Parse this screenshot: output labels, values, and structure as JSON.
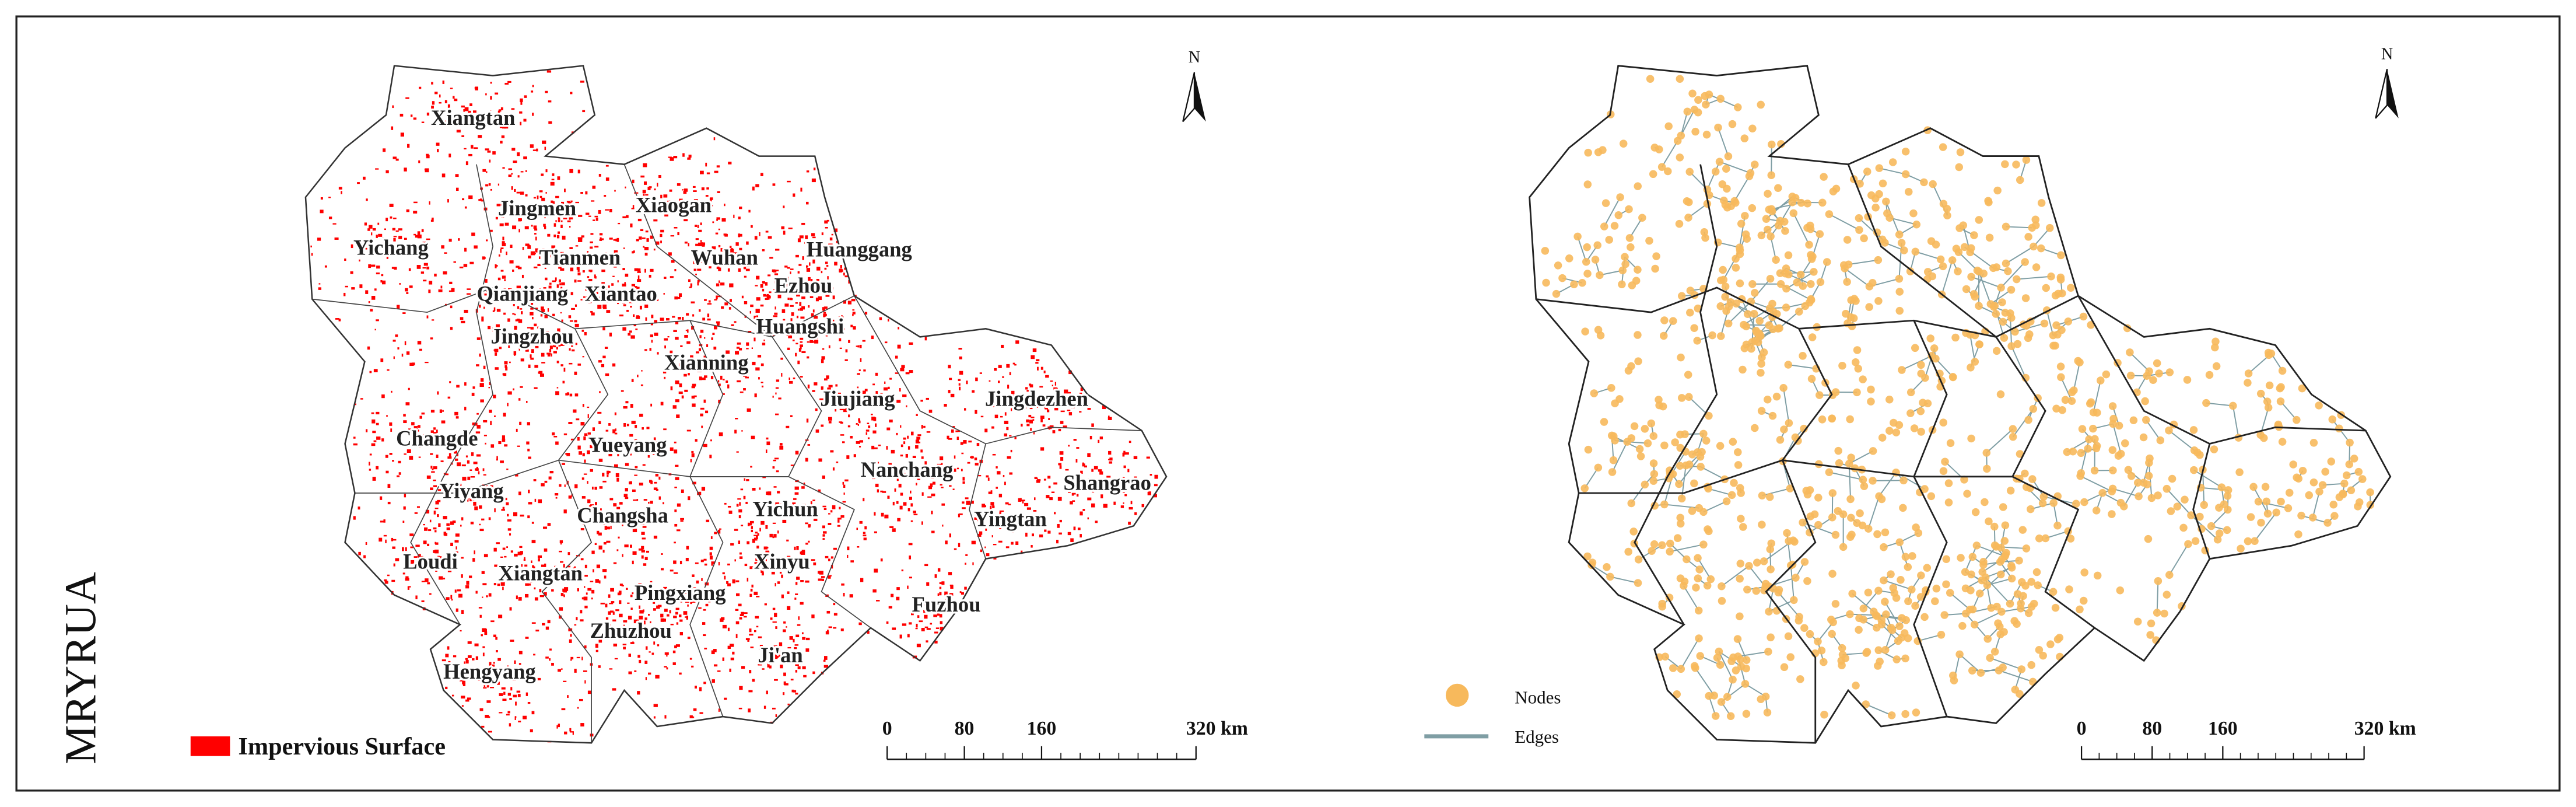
{
  "side_label": "MRYRUA",
  "left_map": {
    "north": "N",
    "cities": [
      "Xiangtan",
      "Jingmen",
      "Xiaogan",
      "Yichang",
      "Tianmen",
      "Wuhan",
      "Huanggang",
      "Qianjiang",
      "Xiantao",
      "Ezhou",
      "Jingzhou",
      "Huangshi",
      "Xianning",
      "Jiujiang",
      "Jingdezhen",
      "Changde",
      "Yueyang",
      "Nanchang",
      "Shangrao",
      "Yiyang",
      "Changsha",
      "Yichun",
      "Yingtan",
      "Loudi",
      "Xiangtan",
      "Xinyu",
      "Pingxiang",
      "Fuzhou",
      "Zhuzhou",
      "Ji'an",
      "Hengyang"
    ],
    "legend": {
      "label": "Impervious Surface",
      "color": "#ff0000"
    },
    "scale_bar": {
      "range": [
        0,
        320
      ],
      "ticks": [
        0,
        80,
        160,
        {
          "value": 320,
          "label": "320 km"
        }
      ]
    }
  },
  "right_map": {
    "north": "N",
    "legend": {
      "nodes": {
        "label": "Nodes",
        "color": "#f7b95c"
      },
      "edges": {
        "label": "Edges",
        "color": "#7f9ea4"
      }
    },
    "scale_bar": {
      "range": [
        0,
        320
      ],
      "ticks": [
        0,
        80,
        160,
        {
          "value": 320,
          "label": "320 km"
        }
      ]
    }
  }
}
